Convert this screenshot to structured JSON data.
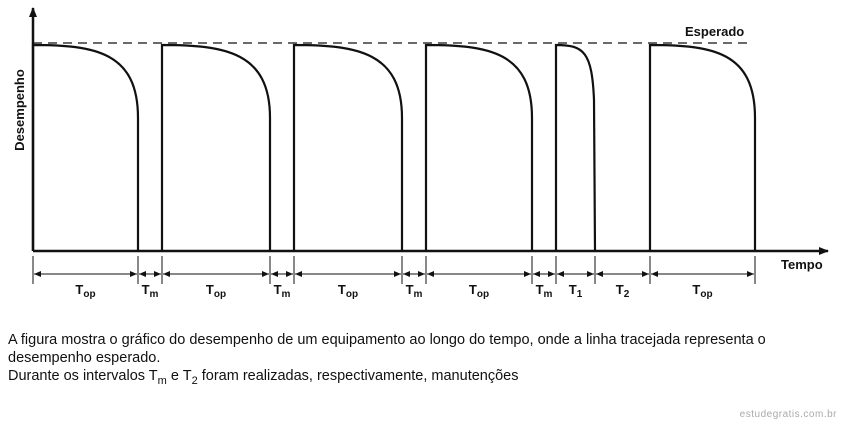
{
  "diagram": {
    "y_label": "Desempenho",
    "x_label": "Tempo",
    "reference_label": "Esperado",
    "intervals": [
      {
        "base": "T",
        "sub": "op"
      },
      {
        "base": "T",
        "sub": "m"
      },
      {
        "base": "T",
        "sub": "op"
      },
      {
        "base": "T",
        "sub": "m"
      },
      {
        "base": "T",
        "sub": "op"
      },
      {
        "base": "T",
        "sub": "m"
      },
      {
        "base": "T",
        "sub": "op"
      },
      {
        "base": "T",
        "sub": "m"
      },
      {
        "base": "T",
        "sub": "1"
      },
      {
        "base": "T",
        "sub": "2"
      },
      {
        "base": "T",
        "sub": "op"
      }
    ]
  },
  "text": {
    "paragraph": "A figura mostra o gráfico do desempenho de um equipamento ao longo do tempo, onde a linha tracejada representa o desempenho esperado.",
    "question": {
      "before": "Durante os intervalos",
      "term1": {
        "base": "T",
        "sub": "m"
      },
      "middle": "e",
      "term2": {
        "base": "T",
        "sub": "2"
      },
      "after": "foram realizadas, respectivamente, manutenções"
    }
  },
  "footer": "estudegratis.com.br"
}
